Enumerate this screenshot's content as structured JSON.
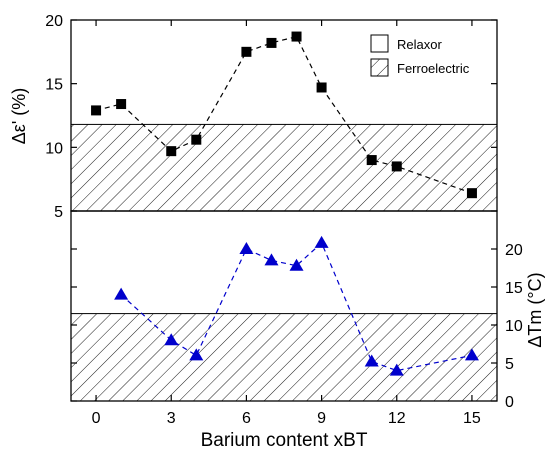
{
  "chart_data": {
    "type": "scatter",
    "xlabel": "Barium content xBT",
    "x_ticks": [
      "0",
      "3",
      "6",
      "9",
      "12",
      "15"
    ],
    "xlim": [
      -1,
      16
    ],
    "panels": [
      {
        "ylabel": "Δε' (%)",
        "ylim": [
          5,
          20
        ],
        "y_ticks": [
          "5",
          "10",
          "15",
          "20"
        ],
        "y_axis_side": "left",
        "marker": "square",
        "color": "#000000",
        "shaded_region": [
          5,
          11.8
        ],
        "series": [
          {
            "x": [
              0,
              1,
              3,
              4,
              6,
              7,
              8,
              9,
              11,
              12,
              15
            ],
            "y": [
              12.9,
              13.4,
              9.7,
              10.6,
              17.5,
              18.2,
              18.7,
              14.7,
              9.0,
              8.5,
              6.4
            ]
          }
        ]
      },
      {
        "ylabel": "ΔTm (°C)",
        "ylim": [
          0,
          25
        ],
        "y_ticks": [
          "0",
          "5",
          "10",
          "15",
          "20"
        ],
        "y_axis_side": "right",
        "marker": "triangle",
        "color": "#0000cc",
        "shaded_region": [
          0,
          11.5
        ],
        "series": [
          {
            "x": [
              1,
              3,
              4,
              6,
              7,
              8,
              9,
              11,
              12,
              15
            ],
            "y": [
              14.0,
              8.0,
              6.0,
              20.0,
              18.5,
              17.8,
              20.8,
              5.2,
              4.0,
              6.0
            ]
          }
        ]
      }
    ],
    "legend": {
      "position": "top-right",
      "entries": [
        {
          "label": "Relaxor",
          "style": "empty"
        },
        {
          "label": "Ferroelectric",
          "style": "hatched"
        }
      ]
    }
  }
}
